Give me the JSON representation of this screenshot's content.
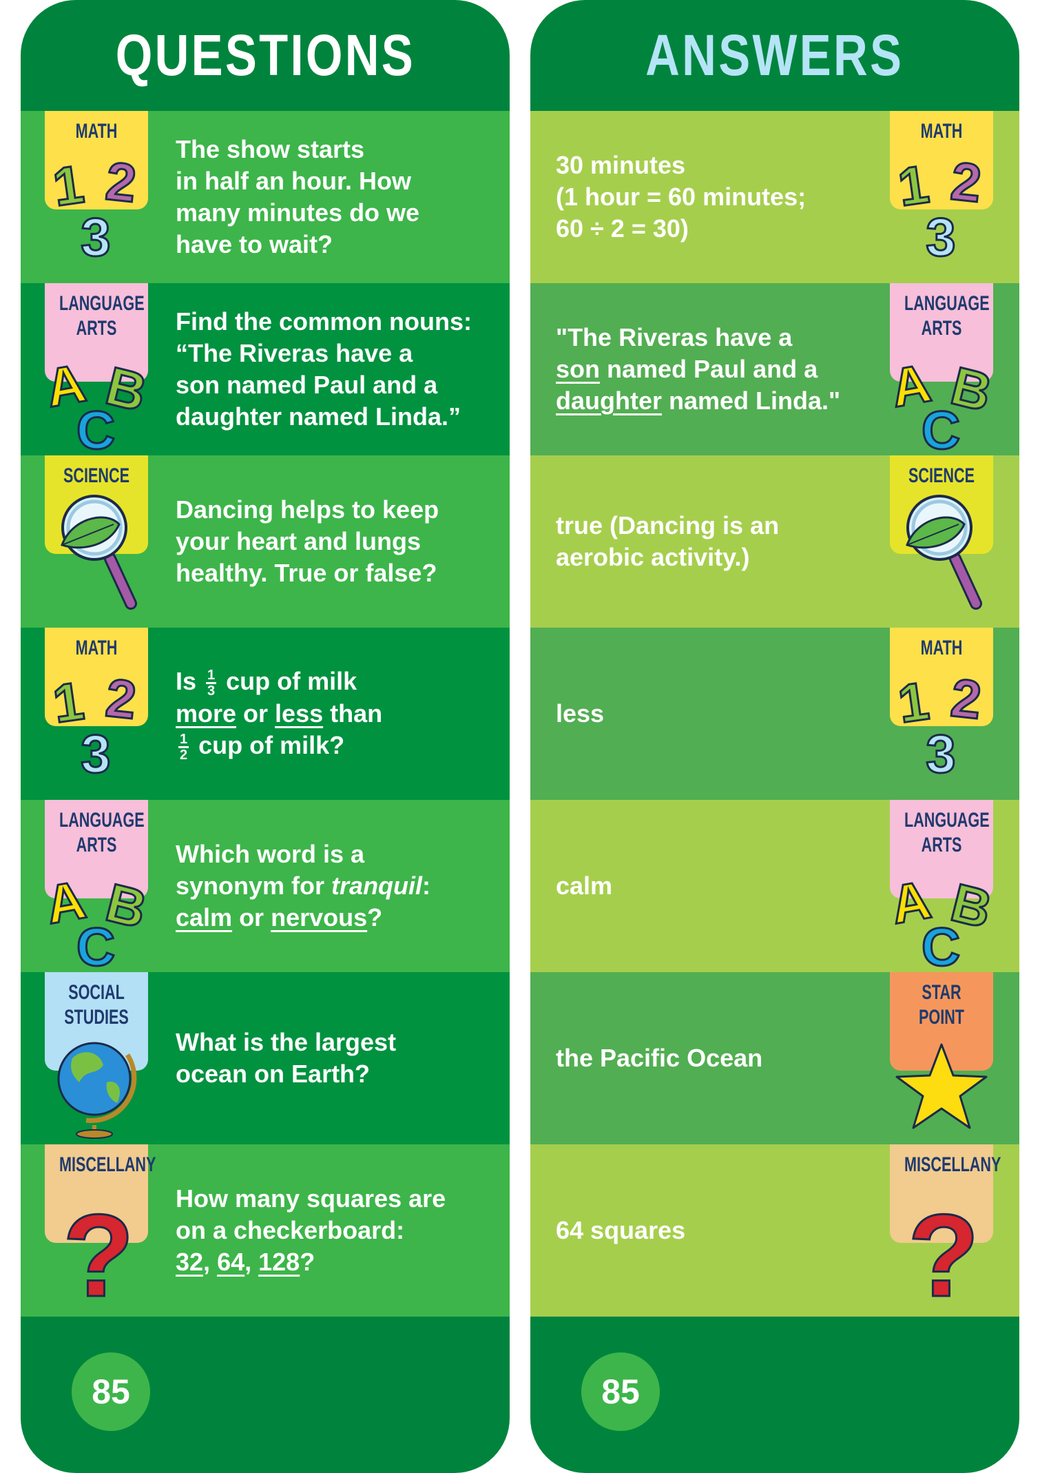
{
  "questions_card": {
    "title": "QUESTIONS",
    "page_number": "85",
    "rows": [
      {
        "tab": {
          "label": [
            "MATH"
          ],
          "icon": "numbers-123-icon",
          "color": "#fde04a"
        },
        "lines": [
          [
            {
              "t": "The show starts"
            }
          ],
          [
            {
              "t": "in half an hour. How"
            }
          ],
          [
            {
              "t": "many minutes do we"
            }
          ],
          [
            {
              "t": "have to wait?"
            }
          ]
        ]
      },
      {
        "tab": {
          "label": [
            "LANGUAGE",
            "ARTS"
          ],
          "icon": "letters-abc-icon",
          "color": "#f7bfd9"
        },
        "lines": [
          [
            {
              "t": "Find the common nouns:"
            }
          ],
          [
            {
              "t": "“The Riveras have a"
            }
          ],
          [
            {
              "t": "son named Paul and a"
            }
          ],
          [
            {
              "t": "daughter named Linda.”"
            }
          ]
        ]
      },
      {
        "tab": {
          "label": [
            "SCIENCE"
          ],
          "icon": "magnifying-glass-leaf-icon",
          "color": "#e6e42a"
        },
        "lines": [
          [
            {
              "t": "Dancing helps to keep"
            }
          ],
          [
            {
              "t": "your heart and lungs"
            }
          ],
          [
            {
              "t": "healthy. True or false?"
            }
          ]
        ]
      },
      {
        "tab": {
          "label": [
            "MATH"
          ],
          "icon": "numbers-123-icon",
          "color": "#fde04a"
        },
        "lines": [
          [
            {
              "t": "Is "
            },
            {
              "num": "1",
              "den": "3"
            },
            {
              "t": " cup of milk"
            }
          ],
          [
            {
              "t": "more",
              "u": true
            },
            {
              "t": " or "
            },
            {
              "t": "less",
              "u": true
            },
            {
              "t": " than"
            }
          ],
          [
            {
              "num": "1",
              "den": "2"
            },
            {
              "t": " cup of milk?"
            }
          ]
        ]
      },
      {
        "tab": {
          "label": [
            "LANGUAGE",
            "ARTS"
          ],
          "icon": "letters-abc-icon",
          "color": "#f7bfd9"
        },
        "lines": [
          [
            {
              "t": "Which word is a"
            }
          ],
          [
            {
              "t": "synonym for "
            },
            {
              "t": "tranquil",
              "i": true
            },
            {
              "t": ":"
            }
          ],
          [
            {
              "t": "calm",
              "u": true
            },
            {
              "t": " or "
            },
            {
              "t": "nervous",
              "u": true
            },
            {
              "t": "?"
            }
          ]
        ]
      },
      {
        "tab": {
          "label": [
            "SOCIAL",
            "STUDIES"
          ],
          "icon": "globe-icon",
          "color": "#b3e0f5"
        },
        "lines": [
          [
            {
              "t": "What is the largest"
            }
          ],
          [
            {
              "t": "ocean on Earth?"
            }
          ]
        ]
      },
      {
        "tab": {
          "label": [
            "MISCELLANY"
          ],
          "icon": "question-mark-icon",
          "color": "#f2cb8e"
        },
        "lines": [
          [
            {
              "t": "How many squares are"
            }
          ],
          [
            {
              "t": "on a checkerboard:"
            }
          ],
          [
            {
              "t": "32",
              "u": true
            },
            {
              "t": ", "
            },
            {
              "t": "64",
              "u": true
            },
            {
              "t": ", "
            },
            {
              "t": "128",
              "u": true
            },
            {
              "t": "?"
            }
          ]
        ]
      }
    ]
  },
  "answers_card": {
    "title": "ANSWERS",
    "page_number": "85",
    "rows": [
      {
        "tab": {
          "label": [
            "MATH"
          ],
          "icon": "numbers-123-icon",
          "color": "#fde04a"
        },
        "lines": [
          [
            {
              "t": "30 minutes"
            }
          ],
          [
            {
              "t": "(1 hour = 60 minutes;"
            }
          ],
          [
            {
              "t": "60 ÷ 2 = 30)"
            }
          ]
        ]
      },
      {
        "tab": {
          "label": [
            "LANGUAGE",
            "ARTS"
          ],
          "icon": "letters-abc-icon",
          "color": "#f7bfd9"
        },
        "lines": [
          [
            {
              "t": "\"The Riveras have a"
            }
          ],
          [
            {
              "t": "son",
              "u": true
            },
            {
              "t": " named Paul and a"
            }
          ],
          [
            {
              "t": "daughter",
              "u": true
            },
            {
              "t": " named Linda.\""
            }
          ]
        ]
      },
      {
        "tab": {
          "label": [
            "SCIENCE"
          ],
          "icon": "magnifying-glass-leaf-icon",
          "color": "#e6e42a"
        },
        "lines": [
          [
            {
              "t": "true (Dancing is an"
            }
          ],
          [
            {
              "t": "aerobic activity.)"
            }
          ]
        ]
      },
      {
        "tab": {
          "label": [
            "MATH"
          ],
          "icon": "numbers-123-icon",
          "color": "#fde04a"
        },
        "lines": [
          [
            {
              "t": "less"
            }
          ]
        ]
      },
      {
        "tab": {
          "label": [
            "LANGUAGE",
            "ARTS"
          ],
          "icon": "letters-abc-icon",
          "color": "#f7bfd9"
        },
        "lines": [
          [
            {
              "t": "calm"
            }
          ]
        ]
      },
      {
        "tab": {
          "label": [
            "STAR",
            "POINT"
          ],
          "icon": "star-icon",
          "color": "#f5975c"
        },
        "lines": [
          [
            {
              "t": "the Pacific Ocean"
            }
          ]
        ]
      },
      {
        "tab": {
          "label": [
            "MISCELLANY"
          ],
          "icon": "question-mark-icon",
          "color": "#f2cb8e"
        },
        "lines": [
          [
            {
              "t": "64 squares"
            }
          ]
        ]
      }
    ]
  }
}
